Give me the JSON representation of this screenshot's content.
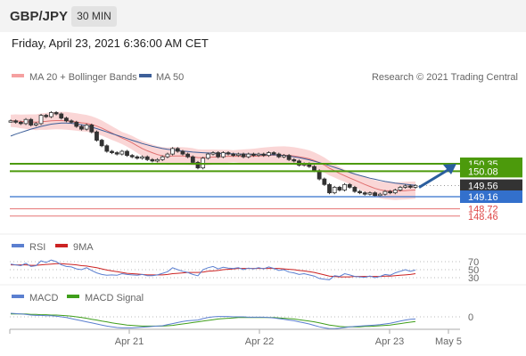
{
  "header": {
    "pair": "GBP/JPY",
    "timeframe": "30 MIN"
  },
  "datetime": "Friday, April 23, 2021 6:36:00 AM CET",
  "legend": {
    "bollinger": "MA 20 + Bollinger Bands",
    "ma50": "MA 50",
    "research": "Research © 2021 Trading Central",
    "rsi": "RSI",
    "rsi_ma": "9MA",
    "macd": "MACD",
    "macd_signal": "MACD Signal"
  },
  "colors": {
    "candle": "#333333",
    "bollinger_band": "#f5b5b5",
    "ma20": "#e07070",
    "ma50": "#3d5f99",
    "resistance": "#4c9a0c",
    "pivot": "#3370cc",
    "support": "#dd4444",
    "last_price": "#333333",
    "rsi": "#5b7fd0",
    "rsi_ma": "#cc2222",
    "macd": "#5b7fd0",
    "macd_signal": "#3f9e1b"
  },
  "chart_data": [
    {
      "type": "candlestick",
      "xlabels": [
        "Apr 21",
        "Apr 22",
        "Apr 23",
        "May 5"
      ],
      "levels": [
        {
          "label": "150.35",
          "value": 150.35,
          "kind": "resistance"
        },
        {
          "label": "150.08",
          "value": 150.08,
          "kind": "resistance"
        },
        {
          "label": "149.56",
          "value": 149.56,
          "kind": "last"
        },
        {
          "label": "149.16",
          "value": 149.16,
          "kind": "pivot"
        },
        {
          "label": "148.72",
          "value": 148.72,
          "kind": "support"
        },
        {
          "label": "148.46",
          "value": 148.46,
          "kind": "support"
        }
      ],
      "close": [
        151.9,
        151.85,
        151.8,
        151.95,
        151.75,
        151.8,
        152.1,
        152.05,
        152.2,
        152.15,
        152.0,
        151.9,
        151.85,
        151.7,
        151.6,
        151.75,
        151.5,
        151.2,
        151.0,
        150.8,
        150.75,
        150.7,
        150.8,
        150.65,
        150.6,
        150.55,
        150.6,
        150.5,
        150.45,
        150.5,
        150.6,
        150.7,
        150.9,
        150.8,
        150.7,
        150.6,
        150.4,
        150.2,
        150.55,
        150.7,
        150.75,
        150.6,
        150.75,
        150.7,
        150.65,
        150.7,
        150.6,
        150.7,
        150.65,
        150.7,
        150.65,
        150.75,
        150.7,
        150.6,
        150.65,
        150.5,
        150.45,
        150.3,
        150.35,
        150.25,
        150.1,
        149.8,
        149.6,
        149.3,
        149.5,
        149.4,
        149.6,
        149.5,
        149.35,
        149.3,
        149.25,
        149.3,
        149.2,
        149.25,
        149.35,
        149.3,
        149.4,
        149.5,
        149.55,
        149.5,
        149.56
      ],
      "ma20": [
        151.9,
        151.9,
        151.88,
        151.87,
        151.86,
        151.85,
        151.87,
        151.88,
        151.9,
        151.91,
        151.91,
        151.9,
        151.88,
        151.86,
        151.83,
        151.81,
        151.77,
        151.71,
        151.64,
        151.55,
        151.46,
        151.37,
        151.28,
        151.2,
        151.11,
        151.0,
        150.9,
        150.82,
        150.75,
        150.68,
        150.64,
        150.62,
        150.63,
        150.63,
        150.63,
        150.62,
        150.6,
        150.57,
        150.57,
        150.58,
        150.59,
        150.6,
        150.61,
        150.62,
        150.62,
        150.62,
        150.62,
        150.62,
        150.62,
        150.63,
        150.64,
        150.65,
        150.66,
        150.66,
        150.66,
        150.65,
        150.63,
        150.6,
        150.57,
        150.53,
        150.47,
        150.39,
        150.3,
        150.19,
        150.1,
        150.0,
        149.92,
        149.84,
        149.76,
        149.68,
        149.6,
        149.53,
        149.46,
        149.41,
        149.38,
        149.37,
        149.36,
        149.37,
        149.38,
        149.39,
        149.4
      ],
      "ma50": [
        151.35,
        151.42,
        151.48,
        151.54,
        151.6,
        151.65,
        151.7,
        151.74,
        151.78,
        151.8,
        151.82,
        151.82,
        151.81,
        151.79,
        151.76,
        151.72,
        151.67,
        151.62,
        151.56,
        151.5,
        151.44,
        151.38,
        151.32,
        151.26,
        151.2,
        151.14,
        151.08,
        151.03,
        150.98,
        150.94,
        150.9,
        150.87,
        150.85,
        150.83,
        150.81,
        150.79,
        150.77,
        150.76,
        150.75,
        150.74,
        150.73,
        150.72,
        150.72,
        150.71,
        150.71,
        150.7,
        150.7,
        150.7,
        150.69,
        150.69,
        150.68,
        150.68,
        150.67,
        150.66,
        150.65,
        150.63,
        150.6,
        150.57,
        150.53,
        150.49,
        150.44,
        150.39,
        150.34,
        150.28,
        150.22,
        150.16,
        150.1,
        150.04,
        149.98,
        149.93,
        149.88,
        149.83,
        149.79,
        149.75,
        149.71,
        149.68,
        149.65,
        149.63,
        149.61,
        149.59,
        149.57
      ],
      "forecast": {
        "from": 149.56,
        "to": 150.35
      }
    },
    {
      "type": "line",
      "title": "RSI",
      "guides": [
        {
          "label": "70",
          "value": 70
        },
        {
          "label": "50",
          "value": 50
        },
        {
          "label": "30",
          "value": 30
        }
      ],
      "rsi": [
        64,
        62,
        60,
        66,
        58,
        60,
        72,
        68,
        74,
        70,
        62,
        58,
        57,
        52,
        50,
        55,
        48,
        42,
        38,
        36,
        37,
        36,
        40,
        38,
        37,
        36,
        38,
        35,
        35,
        37,
        41,
        45,
        55,
        50,
        46,
        43,
        38,
        35,
        50,
        55,
        58,
        52,
        56,
        54,
        53,
        55,
        50,
        54,
        52,
        55,
        52,
        57,
        53,
        48,
        50,
        44,
        42,
        38,
        40,
        37,
        34,
        28,
        26,
        25,
        35,
        33,
        40,
        37,
        33,
        32,
        31,
        34,
        30,
        33,
        38,
        36,
        42,
        46,
        50,
        46,
        49
      ],
      "rsi_ma": [
        62,
        62,
        62,
        62,
        61,
        61,
        62,
        63,
        64,
        65,
        65,
        64,
        63,
        62,
        60,
        59,
        57,
        55,
        52,
        49,
        47,
        45,
        43,
        41,
        40,
        39,
        38,
        37,
        37,
        37,
        37,
        38,
        40,
        41,
        42,
        43,
        43,
        43,
        44,
        46,
        47,
        48,
        50,
        51,
        52,
        53,
        53,
        53,
        53,
        53,
        53,
        53,
        53,
        53,
        52,
        51,
        50,
        48,
        47,
        45,
        43,
        40,
        37,
        34,
        33,
        32,
        32,
        32,
        33,
        33,
        33,
        33,
        33,
        33,
        34,
        34,
        35,
        36,
        37,
        38,
        40
      ]
    },
    {
      "type": "line",
      "title": "MACD",
      "zero_label": "0",
      "macd": [
        0.1,
        0.09,
        0.08,
        0.07,
        0.05,
        0.04,
        0.04,
        0.03,
        0.03,
        0.02,
        0.0,
        -0.02,
        -0.05,
        -0.08,
        -0.11,
        -0.14,
        -0.17,
        -0.2,
        -0.23,
        -0.26,
        -0.28,
        -0.3,
        -0.31,
        -0.31,
        -0.31,
        -0.3,
        -0.29,
        -0.28,
        -0.27,
        -0.26,
        -0.25,
        -0.22,
        -0.19,
        -0.16,
        -0.13,
        -0.11,
        -0.1,
        -0.09,
        -0.05,
        -0.02,
        0.0,
        0.01,
        0.01,
        0.01,
        0.0,
        0.0,
        0.0,
        -0.01,
        -0.01,
        -0.01,
        -0.01,
        -0.02,
        -0.03,
        -0.05,
        -0.07,
        -0.09,
        -0.11,
        -0.14,
        -0.17,
        -0.2,
        -0.24,
        -0.28,
        -0.31,
        -0.33,
        -0.33,
        -0.32,
        -0.3,
        -0.28,
        -0.27,
        -0.26,
        -0.25,
        -0.24,
        -0.23,
        -0.22,
        -0.2,
        -0.18,
        -0.15,
        -0.12,
        -0.09,
        -0.07,
        -0.06
      ],
      "signal": [
        0.08,
        0.08,
        0.08,
        0.08,
        0.07,
        0.07,
        0.06,
        0.06,
        0.05,
        0.05,
        0.04,
        0.03,
        0.02,
        0.0,
        -0.02,
        -0.04,
        -0.07,
        -0.09,
        -0.12,
        -0.14,
        -0.17,
        -0.19,
        -0.21,
        -0.23,
        -0.24,
        -0.25,
        -0.26,
        -0.26,
        -0.26,
        -0.26,
        -0.26,
        -0.25,
        -0.24,
        -0.22,
        -0.2,
        -0.18,
        -0.16,
        -0.14,
        -0.12,
        -0.1,
        -0.08,
        -0.06,
        -0.05,
        -0.04,
        -0.03,
        -0.02,
        -0.02,
        -0.02,
        -0.02,
        -0.02,
        -0.02,
        -0.02,
        -0.02,
        -0.03,
        -0.04,
        -0.05,
        -0.06,
        -0.08,
        -0.1,
        -0.12,
        -0.14,
        -0.17,
        -0.2,
        -0.23,
        -0.25,
        -0.27,
        -0.28,
        -0.28,
        -0.28,
        -0.28,
        -0.27,
        -0.27,
        -0.26,
        -0.25,
        -0.24,
        -0.23,
        -0.21,
        -0.19,
        -0.17,
        -0.15,
        -0.13
      ]
    }
  ]
}
